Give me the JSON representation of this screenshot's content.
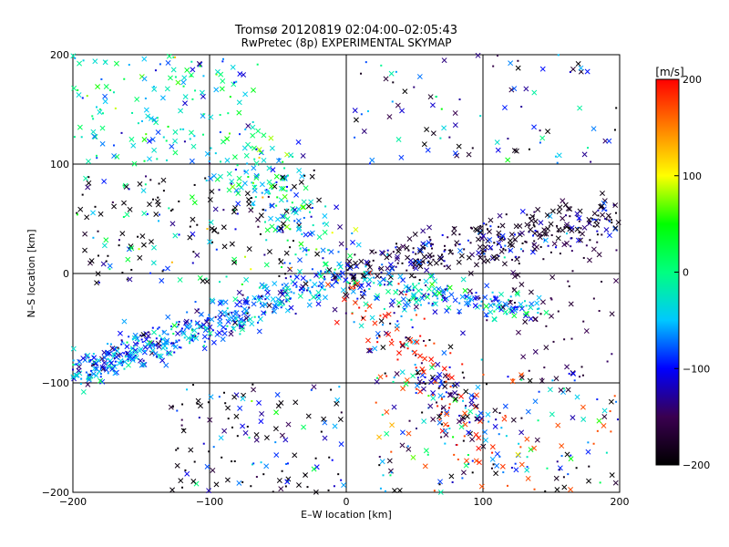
{
  "chart_data": {
    "type": "scatter",
    "title": "Tromsø 20120819 02:04:00–02:05:43",
    "subtitle": "RwPretec (8p) EXPERIMENTAL SKYMAP",
    "xlabel": "E–W location [km]",
    "ylabel": "N–S location [km]",
    "xlim": [
      -200,
      200
    ],
    "ylim": [
      -200,
      200
    ],
    "x_ticks": [
      "−200",
      "−100",
      "0",
      "100",
      "200"
    ],
    "y_ticks": [
      "200",
      "100",
      "0",
      "−100",
      "−200"
    ],
    "x_tick_values": [
      -200,
      -100,
      0,
      100,
      200
    ],
    "y_tick_values": [
      200,
      100,
      0,
      -100,
      -200
    ],
    "grid": true,
    "marker_types": [
      "x",
      "dot"
    ],
    "colorbar": {
      "unit": "[m/s]",
      "range": [
        -200,
        200
      ],
      "ticks": [
        "200",
        "100",
        "0",
        "−100",
        "−200"
      ],
      "tick_values": [
        200,
        100,
        0,
        -100,
        -200
      ],
      "colors": [
        "#000000",
        "#3a0050",
        "#0000ff",
        "#00c8ff",
        "#00ff80",
        "#00ff00",
        "#ffff00",
        "#ff8000",
        "#ff0000"
      ]
    },
    "clusters": [
      {
        "label": "SW arm (towards −190,−90)",
        "x_range": [
          -200,
          0
        ],
        "y_range": [
          -110,
          0
        ],
        "dominant_velocity": [
          -60,
          -20
        ]
      },
      {
        "label": "E arm (towards 200,50)",
        "x_range": [
          0,
          200
        ],
        "y_range": [
          -10,
          60
        ],
        "dominant_velocity": [
          -200,
          -150
        ]
      },
      {
        "label": "SE arm (towards 100,−150)",
        "x_range": [
          0,
          110
        ],
        "y_range": [
          -160,
          -5
        ],
        "dominant_velocity": [
          -100,
          200
        ]
      },
      {
        "label": "NW scatter",
        "x_range": [
          -200,
          -60
        ],
        "y_range": [
          100,
          200
        ],
        "dominant_velocity": [
          -50,
          0
        ]
      }
    ]
  }
}
